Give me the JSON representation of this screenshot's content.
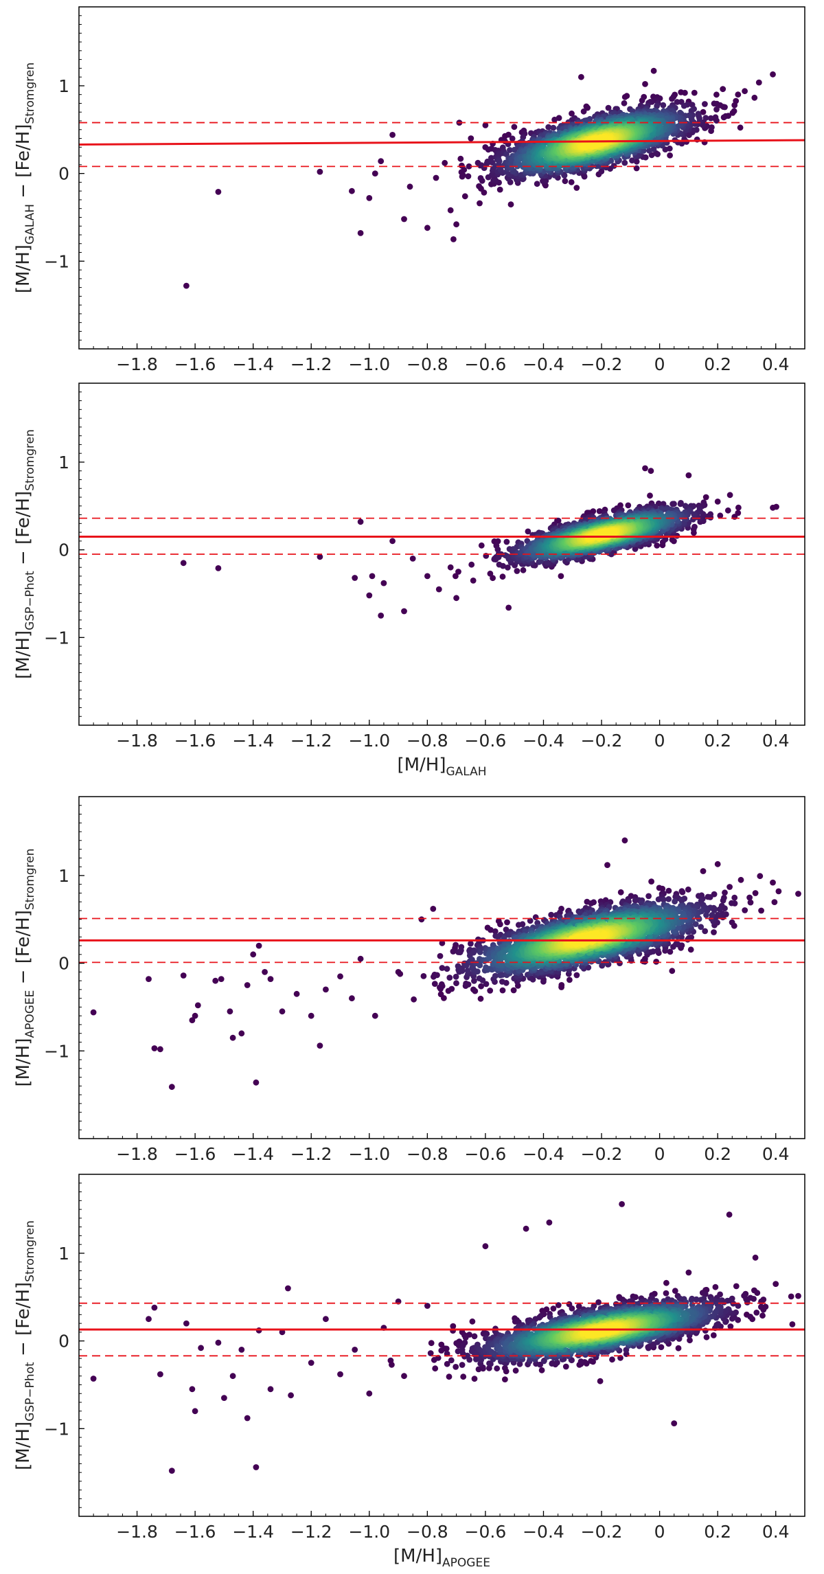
{
  "figure": {
    "description_free": true,
    "colors": {
      "fit_line": "#e8121a",
      "frame": "#000000",
      "density_low": "#440154",
      "density_mid": "#21918c",
      "density_high": "#fde725"
    }
  },
  "chart_data": [
    {
      "type": "scatter",
      "panel": "GALAH minus Stromgren",
      "xlabel": "",
      "ylabel": "[M/H]GALAH − [Fe/H]Stromgren",
      "ylabel_parts": {
        "main": "[M/H]",
        "sub1": "GALAH",
        "minus": " − [Fe/H]",
        "sub2": "Stromgren"
      },
      "xlim": [
        -2.0,
        0.5
      ],
      "ylim": [
        -2.0,
        1.9
      ],
      "xticks": [
        -1.8,
        -1.6,
        -1.4,
        -1.2,
        -1.0,
        -0.8,
        -0.6,
        -0.4,
        -0.2,
        0,
        0.2,
        0.4
      ],
      "xtick_labels": [
        "−1.8",
        "−1.6",
        "−1.4",
        "−1.2",
        "−1.0",
        "−0.8",
        "−0.6",
        "−0.4",
        "−0.2",
        "0",
        "0.2",
        "0.4"
      ],
      "yticks": [
        -1,
        0,
        1
      ],
      "ytick_labels": [
        "−1",
        "0",
        "1"
      ],
      "fit_line": {
        "x": [
          -2.0,
          0.5
        ],
        "y": [
          0.33,
          0.38
        ]
      },
      "scatter_band": {
        "upper": 0.58,
        "lower": 0.08
      },
      "cloud": {
        "x0": -0.22,
        "y0": 0.36,
        "slope": 0.78,
        "sx": 0.16,
        "sy": 0.14,
        "n": 2200
      },
      "outliers": [
        [
          -1.63,
          -1.28
        ],
        [
          -1.52,
          -0.21
        ],
        [
          -1.17,
          0.02
        ],
        [
          -1.06,
          -0.2
        ],
        [
          -1.03,
          -0.68
        ],
        [
          -1.0,
          -0.28
        ],
        [
          -0.98,
          0.0
        ],
        [
          -0.96,
          0.14
        ],
        [
          -0.92,
          0.44
        ],
        [
          -0.88,
          -0.52
        ],
        [
          -0.86,
          -0.15
        ],
        [
          -0.8,
          -0.62
        ],
        [
          -0.77,
          -0.05
        ],
        [
          -0.74,
          0.12
        ],
        [
          -0.72,
          -0.42
        ],
        [
          -0.71,
          -0.75
        ],
        [
          -0.7,
          -0.58
        ],
        [
          -0.69,
          0.58
        ],
        [
          -0.67,
          -0.26
        ],
        [
          -0.65,
          0.4
        ],
        [
          -0.62,
          -0.34
        ],
        [
          -0.6,
          0.55
        ],
        [
          0.1,
          0.82
        ],
        [
          0.12,
          0.92
        ],
        [
          0.15,
          0.7
        ],
        [
          0.19,
          0.63
        ],
        [
          0.22,
          0.76
        ],
        [
          0.27,
          0.9
        ],
        [
          0.39,
          1.13
        ],
        [
          -0.02,
          1.17
        ],
        [
          -0.05,
          1.02
        ],
        [
          -0.27,
          1.1
        ]
      ],
      "seed": 101
    },
    {
      "type": "scatter",
      "panel": "GSP-Phot minus Stromgren vs GALAH",
      "xlabel": "[M/H]GALAH",
      "xlabel_parts": {
        "main": "[M/H]",
        "sub": "GALAH"
      },
      "ylabel": "[M/H]GSP−Phot − [Fe/H]Stromgren",
      "ylabel_parts": {
        "main": "[M/H]",
        "sub1": "GSP−Phot",
        "minus": " − [Fe/H]",
        "sub2": "Stromgren"
      },
      "xlim": [
        -2.0,
        0.5
      ],
      "ylim": [
        -2.0,
        1.9
      ],
      "xticks": [
        -1.8,
        -1.6,
        -1.4,
        -1.2,
        -1.0,
        -0.8,
        -0.6,
        -0.4,
        -0.2,
        0,
        0.2,
        0.4
      ],
      "xtick_labels": [
        "−1.8",
        "−1.6",
        "−1.4",
        "−1.2",
        "−1.0",
        "−0.8",
        "−0.6",
        "−0.4",
        "−0.2",
        "0",
        "0.2",
        "0.4"
      ],
      "yticks": [
        -1,
        0,
        1
      ],
      "ytick_labels": [
        "−1",
        "0",
        "1"
      ],
      "fit_line": {
        "x": [
          -2.0,
          0.5
        ],
        "y": [
          0.15,
          0.15
        ]
      },
      "scatter_band": {
        "upper": 0.36,
        "lower": -0.05
      },
      "cloud": {
        "x0": -0.2,
        "y0": 0.17,
        "slope": 0.72,
        "sx": 0.15,
        "sy": 0.1,
        "n": 1900
      },
      "outliers": [
        [
          -1.64,
          -0.15
        ],
        [
          -1.52,
          -0.21
        ],
        [
          -1.17,
          -0.08
        ],
        [
          -1.03,
          0.32
        ],
        [
          -1.05,
          -0.32
        ],
        [
          -1.0,
          -0.52
        ],
        [
          -0.99,
          -0.3
        ],
        [
          -0.96,
          -0.75
        ],
        [
          -0.95,
          -0.38
        ],
        [
          -0.92,
          0.1
        ],
        [
          -0.88,
          -0.7
        ],
        [
          -0.85,
          -0.1
        ],
        [
          -0.8,
          -0.3
        ],
        [
          -0.76,
          -0.45
        ],
        [
          -0.72,
          -0.2
        ],
        [
          -0.7,
          -0.55
        ],
        [
          -0.52,
          -0.66
        ],
        [
          -0.05,
          0.93
        ],
        [
          -0.03,
          0.9
        ],
        [
          0.1,
          0.85
        ],
        [
          0.2,
          0.55
        ],
        [
          0.27,
          0.42
        ],
        [
          0.39,
          0.48
        ],
        [
          0.16,
          0.6
        ]
      ],
      "seed": 202
    },
    {
      "type": "scatter",
      "panel": "APOGEE minus Stromgren",
      "xlabel": "",
      "ylabel": "[M/H]APOGEE − [Fe/H]Stromgren",
      "ylabel_parts": {
        "main": "[M/H]",
        "sub1": "APOGEE",
        "minus": " − [Fe/H]",
        "sub2": "Stromgren"
      },
      "xlim": [
        -2.0,
        0.5
      ],
      "ylim": [
        -2.0,
        1.9
      ],
      "xticks": [
        -1.8,
        -1.6,
        -1.4,
        -1.2,
        -1.0,
        -0.8,
        -0.6,
        -0.4,
        -0.2,
        0,
        0.2,
        0.4
      ],
      "xtick_labels": [
        "−1.8",
        "−1.6",
        "−1.4",
        "−1.2",
        "−1.0",
        "−0.8",
        "−0.6",
        "−0.4",
        "−0.2",
        "0",
        "0.2",
        "0.4"
      ],
      "yticks": [
        -1,
        0,
        1
      ],
      "ytick_labels": [
        "−1",
        "0",
        "1"
      ],
      "fit_line": {
        "x": [
          -2.0,
          0.5
        ],
        "y": [
          0.26,
          0.26
        ]
      },
      "scatter_band": {
        "upper": 0.51,
        "lower": 0.01
      },
      "cloud": {
        "x0": -0.25,
        "y0": 0.28,
        "slope": 0.7,
        "sx": 0.2,
        "sy": 0.15,
        "n": 2600
      },
      "outliers": [
        [
          -1.95,
          -0.56
        ],
        [
          -1.76,
          -0.18
        ],
        [
          -1.74,
          -0.97
        ],
        [
          -1.72,
          -0.98
        ],
        [
          -1.68,
          -1.41
        ],
        [
          -1.64,
          -0.14
        ],
        [
          -1.61,
          -0.65
        ],
        [
          -1.6,
          -0.6
        ],
        [
          -1.59,
          -0.48
        ],
        [
          -1.53,
          -0.2
        ],
        [
          -1.51,
          -0.18
        ],
        [
          -1.48,
          -0.55
        ],
        [
          -1.47,
          -0.85
        ],
        [
          -1.44,
          -0.8
        ],
        [
          -1.42,
          -0.25
        ],
        [
          -1.4,
          0.1
        ],
        [
          -1.39,
          -1.36
        ],
        [
          -1.38,
          0.2
        ],
        [
          -1.36,
          -0.1
        ],
        [
          -1.34,
          -0.18
        ],
        [
          -1.3,
          -0.55
        ],
        [
          -1.25,
          -0.35
        ],
        [
          -1.2,
          -0.6
        ],
        [
          -1.17,
          -0.94
        ],
        [
          -1.15,
          -0.3
        ],
        [
          -1.1,
          -0.15
        ],
        [
          -1.06,
          -0.4
        ],
        [
          -1.03,
          0.05
        ],
        [
          -0.98,
          -0.6
        ],
        [
          -0.9,
          -0.1
        ],
        [
          -0.82,
          0.5
        ],
        [
          -0.78,
          0.62
        ],
        [
          0.15,
          1.05
        ],
        [
          0.2,
          1.13
        ],
        [
          0.28,
          0.95
        ],
        [
          0.33,
          0.8
        ],
        [
          0.35,
          0.6
        ],
        [
          0.39,
          0.92
        ],
        [
          0.41,
          0.82
        ],
        [
          -0.12,
          1.4
        ],
        [
          -0.18,
          1.12
        ]
      ],
      "seed": 303
    },
    {
      "type": "scatter",
      "panel": "GSP-Phot minus Stromgren vs APOGEE",
      "xlabel": "[M/H]APOGEE",
      "xlabel_parts": {
        "main": "[M/H]",
        "sub": "APOGEE"
      },
      "ylabel": "[M/H]GSP−Phot − [Fe/H]Stromgren",
      "ylabel_parts": {
        "main": "[M/H]",
        "sub1": "GSP−Phot",
        "minus": " − [Fe/H]",
        "sub2": "Stromgren"
      },
      "xlim": [
        -2.0,
        0.5
      ],
      "ylim": [
        -2.0,
        1.9
      ],
      "xticks": [
        -1.8,
        -1.6,
        -1.4,
        -1.2,
        -1.0,
        -0.8,
        -0.6,
        -0.4,
        -0.2,
        0,
        0.2,
        0.4
      ],
      "xtick_labels": [
        "−1.8",
        "−1.6",
        "−1.4",
        "−1.2",
        "−1.0",
        "−0.8",
        "−0.6",
        "−0.4",
        "−0.2",
        "0",
        "0.2",
        "0.4"
      ],
      "yticks": [
        -1,
        0,
        1
      ],
      "ytick_labels": [
        "−1",
        "0",
        "1"
      ],
      "fit_line": {
        "x": [
          -2.0,
          0.5
        ],
        "y": [
          0.13,
          0.13
        ]
      },
      "scatter_band": {
        "upper": 0.43,
        "lower": -0.17
      },
      "cloud": {
        "x0": -0.2,
        "y0": 0.12,
        "slope": 0.55,
        "sx": 0.2,
        "sy": 0.12,
        "n": 2600
      },
      "outliers": [
        [
          -1.95,
          -0.43
        ],
        [
          -1.76,
          0.25
        ],
        [
          -1.74,
          0.38
        ],
        [
          -1.72,
          -0.38
        ],
        [
          -1.68,
          -1.48
        ],
        [
          -1.63,
          0.2
        ],
        [
          -1.61,
          -0.55
        ],
        [
          -1.6,
          -0.8
        ],
        [
          -1.58,
          -0.08
        ],
        [
          -1.52,
          -0.02
        ],
        [
          -1.5,
          -0.65
        ],
        [
          -1.47,
          -0.4
        ],
        [
          -1.44,
          -0.1
        ],
        [
          -1.42,
          -0.88
        ],
        [
          -1.39,
          -1.44
        ],
        [
          -1.38,
          0.12
        ],
        [
          -1.34,
          -0.55
        ],
        [
          -1.3,
          0.1
        ],
        [
          -1.28,
          0.6
        ],
        [
          -1.27,
          -0.62
        ],
        [
          -1.2,
          -0.25
        ],
        [
          -1.15,
          0.25
        ],
        [
          -1.1,
          -0.38
        ],
        [
          -1.05,
          -0.1
        ],
        [
          -1.0,
          -0.6
        ],
        [
          -0.95,
          0.15
        ],
        [
          -0.9,
          0.45
        ],
        [
          -0.88,
          -0.4
        ],
        [
          -0.8,
          0.4
        ],
        [
          -0.68,
          0.1
        ],
        [
          -0.6,
          1.08
        ],
        [
          -0.46,
          1.28
        ],
        [
          -0.38,
          1.35
        ],
        [
          -0.13,
          1.56
        ],
        [
          0.05,
          -0.94
        ],
        [
          0.24,
          1.44
        ],
        [
          0.33,
          0.95
        ],
        [
          0.4,
          0.65
        ],
        [
          0.35,
          0.45
        ],
        [
          0.1,
          0.78
        ],
        [
          0.3,
          0.3
        ]
      ],
      "seed": 404
    }
  ]
}
